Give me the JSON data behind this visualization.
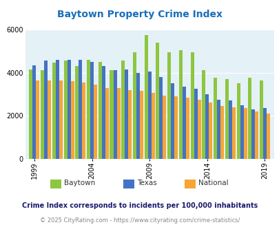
{
  "title": "Baytown Property Crime Index",
  "title_color": "#1a6fba",
  "years": [
    1999,
    2000,
    2001,
    2002,
    2003,
    2004,
    2005,
    2006,
    2007,
    2008,
    2009,
    2010,
    2011,
    2012,
    2013,
    2014,
    2015,
    2016,
    2017,
    2018,
    2019,
    2020
  ],
  "baytown": [
    4150,
    4100,
    4450,
    4550,
    4300,
    4600,
    4500,
    4100,
    4550,
    4950,
    5750,
    5400,
    4950,
    5050,
    4950,
    4100,
    3750,
    3700,
    3500,
    3750,
    3650,
    null
  ],
  "texas": [
    4350,
    4550,
    4600,
    4600,
    4600,
    4500,
    4300,
    4100,
    4150,
    4000,
    4050,
    3800,
    3500,
    3350,
    3250,
    3000,
    2750,
    2700,
    2500,
    2300,
    2350,
    null
  ],
  "national": [
    3650,
    3650,
    3650,
    3600,
    3550,
    3450,
    3300,
    3300,
    3200,
    3150,
    3050,
    2950,
    2900,
    2850,
    2750,
    2600,
    2450,
    2400,
    2350,
    2200,
    2100,
    null
  ],
  "baytown_color": "#8dc63f",
  "texas_color": "#4472c4",
  "national_color": "#f7a535",
  "plot_bg": "#e4f1f7",
  "ylim": [
    0,
    6000
  ],
  "yticks": [
    0,
    2000,
    4000,
    6000
  ],
  "xlabel_ticks": [
    1999,
    2004,
    2009,
    2014,
    2019
  ],
  "footnote1": "Crime Index corresponds to incidents per 100,000 inhabitants",
  "footnote2": "© 2025 CityRating.com - https://www.cityrating.com/crime-statistics/",
  "footnote1_color": "#1a1a6e",
  "footnote2_color": "#888888"
}
